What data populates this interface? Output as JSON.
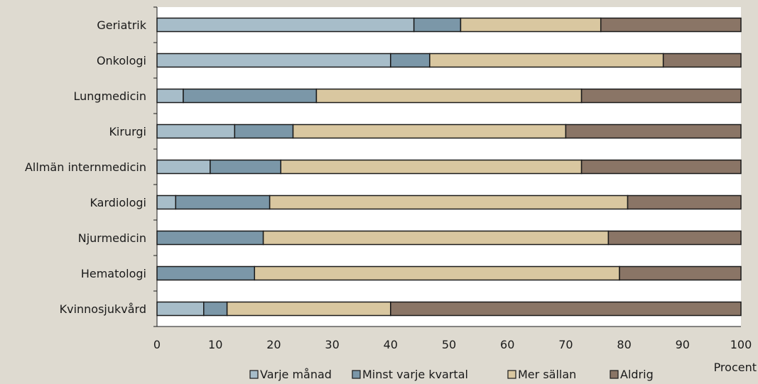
{
  "chart_data": {
    "type": "bar",
    "orientation": "horizontal",
    "stacked": true,
    "categories": [
      "Geriatrik",
      "Onkologi",
      "Lungmedicin",
      "Kirurgi",
      "Allmän internmedicin",
      "Kardiologi",
      "Njurmedicin",
      "Hematologi",
      "Kvinnosjukvård"
    ],
    "series": [
      {
        "name": "Varje månad",
        "color": "#a7bdc9",
        "values": [
          44,
          40,
          4.5,
          13.3,
          9.1,
          3.2,
          0,
          0,
          8
        ]
      },
      {
        "name": "Minst varje kvartal",
        "color": "#7b97a8",
        "values": [
          8,
          6.7,
          22.8,
          10,
          12.1,
          16.1,
          18.2,
          16.7,
          4
        ]
      },
      {
        "name": "Mer sällan",
        "color": "#d9c7a0",
        "values": [
          24,
          40,
          45.4,
          46.7,
          51.5,
          61.3,
          59.1,
          62.5,
          28
        ]
      },
      {
        "name": "Aldrig",
        "color": "#8a7566",
        "values": [
          24,
          13.3,
          27.3,
          30,
          27.3,
          19.4,
          22.7,
          20.8,
          60
        ]
      }
    ],
    "xlabel": "Procent",
    "xlim": [
      0,
      100
    ],
    "xticks": [
      0,
      10,
      20,
      30,
      40,
      50,
      60,
      70,
      80,
      90,
      100
    ],
    "grid": false,
    "legend_position": "bottom"
  }
}
